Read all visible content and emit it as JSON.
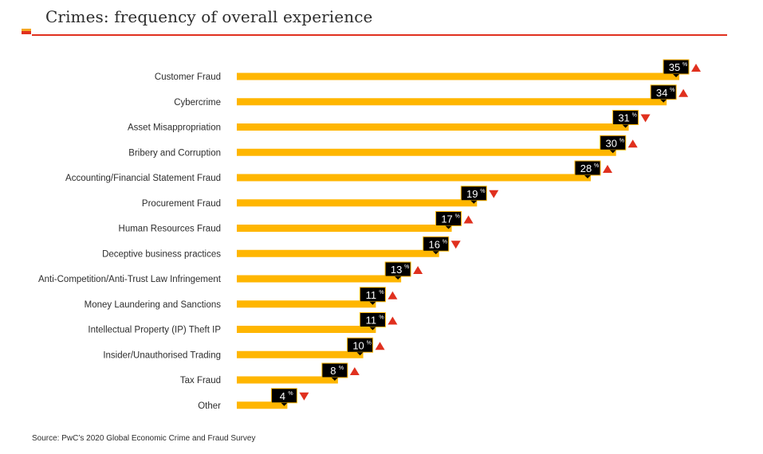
{
  "title": "Crimes: frequency of overall experience",
  "source": "Source: PwC’s 2020 Global Economic Crime and Fraud Survey",
  "colors": {
    "bar": "#ffb600",
    "callout": "#000000",
    "callout_border": "#ffb600",
    "arrow": "#e0301e",
    "rule": "#e0301e"
  },
  "chart_data": {
    "type": "bar",
    "orientation": "horizontal",
    "value_unit": "%",
    "categories": [
      "Customer Fraud",
      "Cybercrime",
      "Asset Misappropriation",
      "Bribery and Corruption",
      "Accounting/Financial Statement Fraud",
      "Procurement Fraud",
      "Human Resources Fraud",
      "Deceptive business practices",
      "Anti-Competition/Anti-Trust Law Infringement",
      "Money Laundering and Sanctions",
      "Intellectual Property (IP) Theft IP",
      "Insider/Unauthorised Trading",
      "Tax Fraud",
      "Other"
    ],
    "values": [
      35,
      34,
      31,
      30,
      28,
      19,
      17,
      16,
      13,
      11,
      11,
      10,
      8,
      4
    ],
    "trend": [
      "up",
      "up",
      "down",
      "up",
      "up",
      "down",
      "up",
      "down",
      "up",
      "up",
      "up",
      "up",
      "up",
      "down"
    ],
    "xlim": [
      0,
      35
    ],
    "grid": false
  }
}
